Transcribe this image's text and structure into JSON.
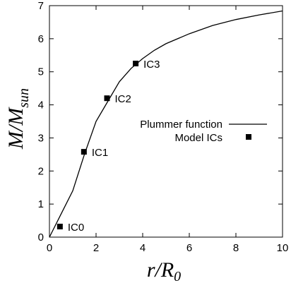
{
  "chart_data": {
    "type": "line",
    "title": "",
    "xlabel": {
      "main": "r/R",
      "sub": "0"
    },
    "ylabel": {
      "main": "M/M",
      "sub": "sun"
    },
    "xlim": [
      0,
      10
    ],
    "ylim": [
      0,
      7
    ],
    "xticks": [
      "0",
      "2",
      "4",
      "6",
      "8",
      "10"
    ],
    "yticks": [
      "0",
      "1",
      "2",
      "3",
      "4",
      "5",
      "6",
      "7"
    ],
    "grid": false,
    "legend_position": "right",
    "series": [
      {
        "name": "Plummer function",
        "style": "line",
        "x": [
          0,
          0.5,
          1,
          1.5,
          2,
          2.5,
          3,
          3.5,
          4,
          4.5,
          5,
          6,
          7,
          8,
          9,
          10
        ],
        "y": [
          0,
          0.7,
          1.4,
          2.5,
          3.5,
          4.1,
          4.7,
          5.1,
          5.4,
          5.65,
          5.85,
          6.15,
          6.4,
          6.58,
          6.72,
          6.84
        ]
      },
      {
        "name": "Model ICs",
        "style": "marker",
        "marker": "square",
        "points": [
          {
            "label": "IC0",
            "x": 0.45,
            "y": 0.32
          },
          {
            "label": "IC1",
            "x": 1.48,
            "y": 2.58
          },
          {
            "label": "IC2",
            "x": 2.47,
            "y": 4.2
          },
          {
            "label": "IC3",
            "x": 3.7,
            "y": 5.25
          }
        ]
      }
    ]
  }
}
